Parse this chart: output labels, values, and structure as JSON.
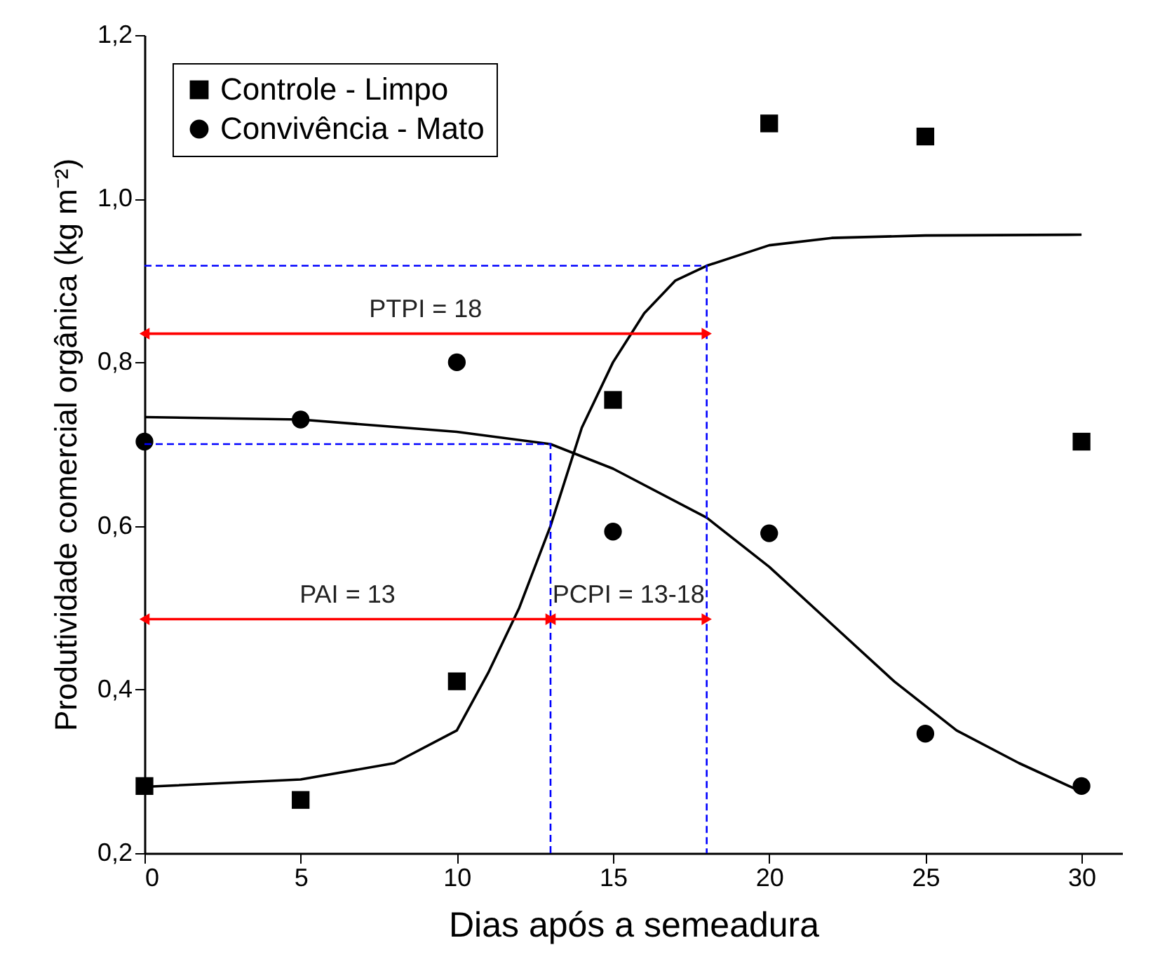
{
  "chart_data": {
    "type": "scatter",
    "xlabel": "Dias após a semeadura",
    "ylabel": "Produtividade comercial orgânica (kg m⁻²)",
    "xlim": [
      0,
      31.3
    ],
    "xticks": [
      0,
      5,
      10,
      15,
      20,
      25,
      30
    ],
    "ylim": [
      0.2,
      1.2
    ],
    "yticks": [
      {
        "value": 0.2,
        "label": "0,2"
      },
      {
        "value": 0.4,
        "label": "0,4"
      },
      {
        "value": 0.6,
        "label": "0,6"
      },
      {
        "value": 0.8,
        "label": "0,8"
      },
      {
        "value": 1.0,
        "label": "1,0"
      },
      {
        "value": 1.2,
        "label": "1,2"
      }
    ],
    "grid": false,
    "legend": "top left",
    "series": [
      {
        "name": "Controle - Limpo",
        "marker": "square",
        "color": "#000000",
        "x": [
          0,
          5,
          10,
          15,
          20,
          25,
          30
        ],
        "values": [
          0.282,
          0.265,
          0.41,
          0.754,
          1.092,
          1.076,
          0.703
        ]
      },
      {
        "name": "Convivência - Mato",
        "marker": "circle",
        "color": "#000000",
        "x": [
          0,
          5,
          10,
          15,
          20,
          25,
          30
        ],
        "values": [
          0.703,
          0.73,
          0.8,
          0.593,
          0.591,
          0.346,
          0.282
        ]
      },
      {
        "type": "line",
        "marker": "none",
        "line_style": "solid",
        "color": "#000000",
        "x": [
          0,
          5,
          8,
          10,
          11,
          12,
          13,
          14,
          15,
          16,
          17,
          18,
          20,
          22,
          25,
          30
        ],
        "values": [
          0.281,
          0.29,
          0.31,
          0.35,
          0.42,
          0.5,
          0.6,
          0.72,
          0.8,
          0.86,
          0.9,
          0.918,
          0.943,
          0.952,
          0.955,
          0.956
        ]
      },
      {
        "type": "line",
        "marker": "none",
        "line_style": "solid",
        "color": "#000000",
        "x": [
          0,
          5,
          10,
          13,
          15,
          18,
          20,
          22,
          24,
          26,
          28,
          30
        ],
        "values": [
          0.733,
          0.73,
          0.715,
          0.7,
          0.67,
          0.61,
          0.55,
          0.48,
          0.41,
          0.35,
          0.31,
          0.275
        ]
      },
      {
        "type": "line",
        "marker": "none",
        "line_style": "dashed",
        "color": "#0000ff",
        "x": [
          0,
          13,
          13
        ],
        "values": [
          0.7,
          0.7,
          0.2
        ]
      },
      {
        "type": "line",
        "marker": "none",
        "line_style": "dashed",
        "color": "#0000ff",
        "x": [
          0,
          18,
          18
        ],
        "values": [
          0.918,
          0.918,
          0.2
        ]
      },
      {
        "type": "line",
        "marker": "triangle",
        "line_style": "solid",
        "color": "#ff0000",
        "x": [
          0,
          18
        ],
        "values": [
          0.835,
          0.835
        ]
      },
      {
        "type": "line",
        "marker": "triangle",
        "line_style": "solid",
        "color": "#ff0000",
        "x": [
          0,
          13
        ],
        "values": [
          0.486,
          0.486
        ]
      },
      {
        "type": "line",
        "marker": "triangle",
        "line_style": "solid",
        "color": "#ff0000",
        "x": [
          13,
          18
        ],
        "values": [
          0.486,
          0.486
        ]
      }
    ],
    "annotations": [
      {
        "text": "PTPI = 18",
        "x": 9,
        "y": 0.835
      },
      {
        "text": "PAI = 13",
        "x": 6.5,
        "y": 0.486
      },
      {
        "text": "PCPI = 13-18",
        "x": 15.5,
        "y": 0.486
      }
    ]
  }
}
